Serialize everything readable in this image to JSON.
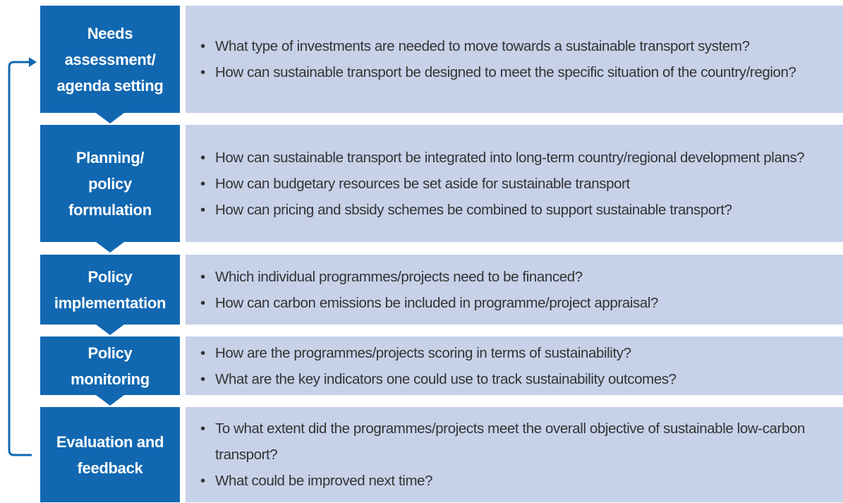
{
  "stages": [
    {
      "label": [
        "Needs",
        "assessment/",
        "agenda setting"
      ],
      "questions": [
        "What type of investments are needed to move towards a sustainable transport system?",
        "How can sustainable transport be designed to meet the specific situation of the country/region?"
      ]
    },
    {
      "label": [
        "Planning/",
        "policy",
        "formulation"
      ],
      "questions": [
        "How can sustainable transport be integrated into long-term country/regional development plans?",
        "How can budgetary resources be set aside for sustainable transport",
        "How can pricing and sbsidy schemes be combined to support sustainable transport?"
      ]
    },
    {
      "label": [
        "Policy",
        "implementation"
      ],
      "questions": [
        "Which individual programmes/projects need to be financed?",
        "How can carbon emissions be included in programme/project appraisal?"
      ]
    },
    {
      "label": [
        "Policy",
        "monitoring"
      ],
      "questions": [
        "How are the programmes/projects scoring in terms of sustainability?",
        "What are the key indicators one could use to track sustainability outcomes?"
      ]
    },
    {
      "label": [
        "Evaluation and",
        "feedback"
      ],
      "questions": [
        "To what extent did the programmes/projects meet the overall objective of sustainable low-carbon transport?",
        "What could be improved next time?"
      ]
    }
  ]
}
